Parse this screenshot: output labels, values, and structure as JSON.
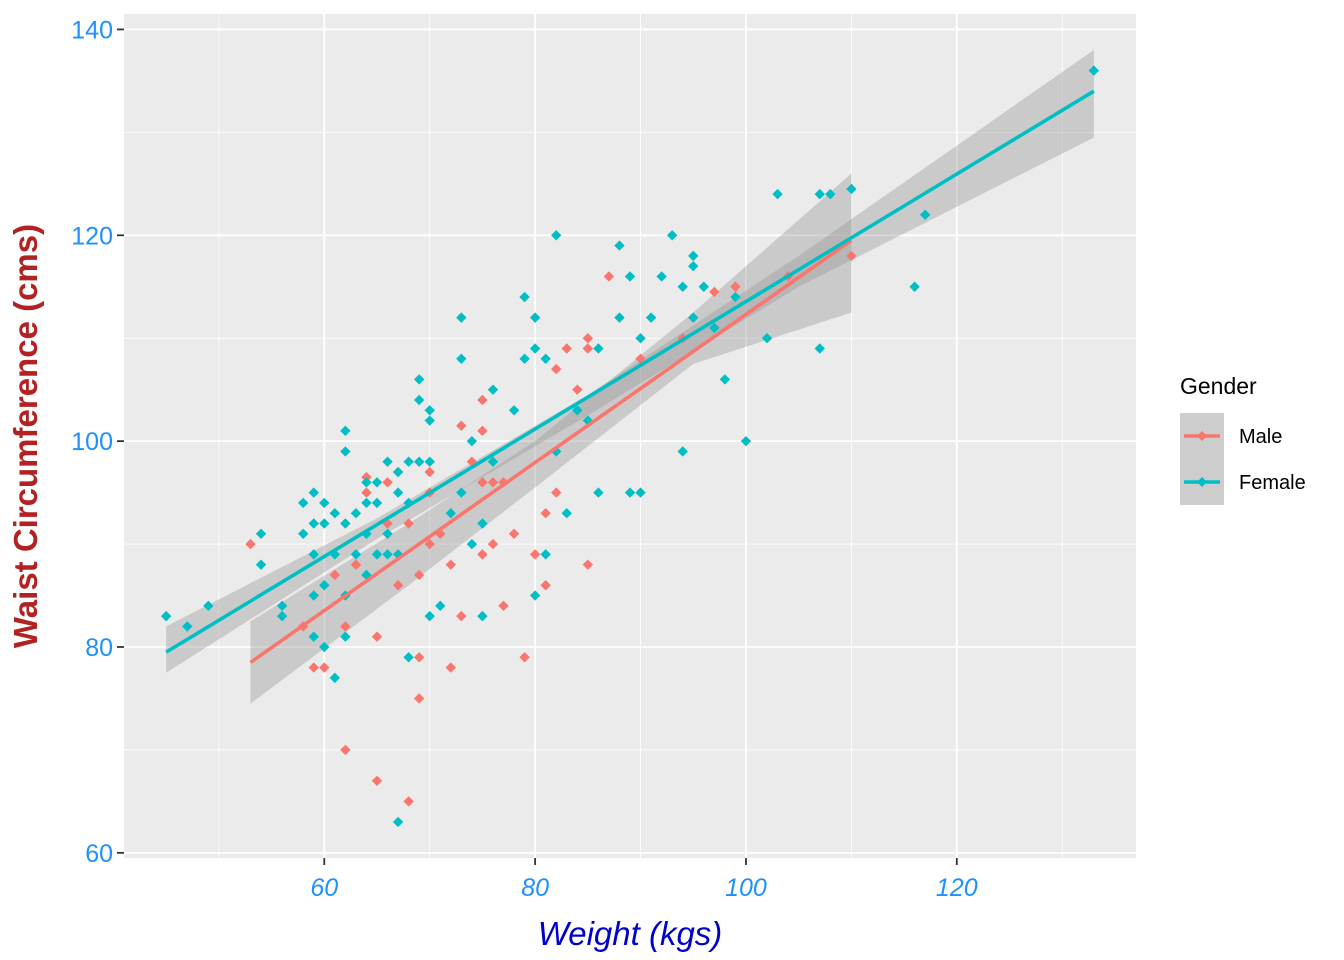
{
  "chart_data": {
    "type": "scatter",
    "title": "",
    "xlabel": "Weight (kgs)",
    "ylabel": "Waist Circumference (cms)",
    "xlim": [
      41,
      137
    ],
    "ylim": [
      59.5,
      141.5
    ],
    "x_ticks": [
      60,
      80,
      100,
      120
    ],
    "y_ticks": [
      60,
      80,
      100,
      120,
      140
    ],
    "grid": true,
    "legend": {
      "title": "Gender",
      "position": "right",
      "items": [
        "Male",
        "Female"
      ]
    },
    "colors": {
      "Male": "#F8766D",
      "Female": "#00BFC4",
      "x_tick_color": "#1E90FF",
      "y_tick_color": "#1E90FF",
      "xlabel_color": "#0000CD",
      "ylabel_color": "#B22222",
      "panel": "#EBEBEB",
      "ribbon": "#999999"
    },
    "series": [
      {
        "name": "Male",
        "points": [
          [
            53,
            90
          ],
          [
            58,
            82
          ],
          [
            59,
            78
          ],
          [
            60,
            78
          ],
          [
            61,
            87
          ],
          [
            62,
            82
          ],
          [
            62,
            70
          ],
          [
            63,
            88
          ],
          [
            64,
            95
          ],
          [
            64,
            96.5
          ],
          [
            65,
            81
          ],
          [
            65,
            67
          ],
          [
            66,
            92
          ],
          [
            66,
            96
          ],
          [
            67,
            97
          ],
          [
            67,
            86
          ],
          [
            68,
            65
          ],
          [
            68,
            92
          ],
          [
            69,
            79
          ],
          [
            69,
            75
          ],
          [
            69,
            87
          ],
          [
            70,
            95
          ],
          [
            70,
            90
          ],
          [
            70,
            97
          ],
          [
            71,
            91
          ],
          [
            72,
            88
          ],
          [
            72,
            78
          ],
          [
            73,
            101.5
          ],
          [
            73,
            83
          ],
          [
            74,
            98
          ],
          [
            75,
            104
          ],
          [
            75,
            101
          ],
          [
            75,
            96
          ],
          [
            75,
            89
          ],
          [
            76,
            90
          ],
          [
            76,
            96
          ],
          [
            77,
            84
          ],
          [
            77,
            96
          ],
          [
            78,
            91
          ],
          [
            79,
            79
          ],
          [
            80,
            89
          ],
          [
            81,
            93
          ],
          [
            81,
            86
          ],
          [
            82,
            95
          ],
          [
            82,
            107
          ],
          [
            83,
            109
          ],
          [
            84,
            105
          ],
          [
            85,
            109
          ],
          [
            85,
            110
          ],
          [
            85,
            88
          ],
          [
            87,
            116
          ],
          [
            90,
            108
          ],
          [
            94,
            110
          ],
          [
            97,
            114.5
          ],
          [
            99,
            115
          ],
          [
            104,
            116
          ],
          [
            110,
            118
          ]
        ],
        "fit": {
          "x0": 53,
          "y0": 78.5,
          "x1": 110,
          "y1": 119.5
        },
        "band": [
          [
            53,
            74.5,
            82.5
          ],
          [
            68,
            86,
            92
          ],
          [
            80,
            95.5,
            100
          ],
          [
            95,
            107.5,
            112.5
          ],
          [
            110,
            112.5,
            126
          ]
        ]
      },
      {
        "name": "Female",
        "points": [
          [
            45,
            83
          ],
          [
            47,
            82
          ],
          [
            49,
            84
          ],
          [
            54,
            88
          ],
          [
            54,
            91
          ],
          [
            56,
            84
          ],
          [
            56,
            83
          ],
          [
            58,
            91
          ],
          [
            58,
            94
          ],
          [
            59,
            95
          ],
          [
            59,
            92
          ],
          [
            59,
            89
          ],
          [
            59,
            85
          ],
          [
            59,
            81
          ],
          [
            60,
            94
          ],
          [
            60,
            92
          ],
          [
            60,
            86
          ],
          [
            60,
            80
          ],
          [
            61,
            93
          ],
          [
            61,
            89
          ],
          [
            61,
            77
          ],
          [
            62,
            101
          ],
          [
            62,
            99
          ],
          [
            62,
            92
          ],
          [
            62,
            85
          ],
          [
            62,
            81
          ],
          [
            63,
            93
          ],
          [
            63,
            89
          ],
          [
            64,
            96
          ],
          [
            64,
            94
          ],
          [
            64,
            91
          ],
          [
            64,
            87
          ],
          [
            65,
            96
          ],
          [
            65,
            94
          ],
          [
            65,
            89
          ],
          [
            66,
            98
          ],
          [
            66,
            91
          ],
          [
            66,
            89
          ],
          [
            67,
            97
          ],
          [
            67,
            95
          ],
          [
            67,
            89
          ],
          [
            67,
            63
          ],
          [
            68,
            98
          ],
          [
            68,
            94
          ],
          [
            68,
            79
          ],
          [
            69,
            106
          ],
          [
            69,
            104
          ],
          [
            69,
            98
          ],
          [
            70,
            103
          ],
          [
            70,
            102
          ],
          [
            70,
            98
          ],
          [
            70,
            83
          ],
          [
            71,
            84
          ],
          [
            72,
            93
          ],
          [
            73,
            112
          ],
          [
            73,
            108
          ],
          [
            73,
            95
          ],
          [
            74,
            100
          ],
          [
            74,
            90
          ],
          [
            75,
            92
          ],
          [
            75,
            83
          ],
          [
            76,
            98
          ],
          [
            76,
            105
          ],
          [
            78,
            103
          ],
          [
            79,
            114
          ],
          [
            79,
            108
          ],
          [
            80,
            112
          ],
          [
            80,
            109
          ],
          [
            80,
            85
          ],
          [
            81,
            108
          ],
          [
            81,
            89
          ],
          [
            82,
            120
          ],
          [
            82,
            99
          ],
          [
            83,
            93
          ],
          [
            84,
            103
          ],
          [
            85,
            102
          ],
          [
            86,
            109
          ],
          [
            86,
            95
          ],
          [
            88,
            119
          ],
          [
            88,
            112
          ],
          [
            89,
            116
          ],
          [
            89,
            95
          ],
          [
            90,
            110
          ],
          [
            90,
            95
          ],
          [
            91,
            112
          ],
          [
            92,
            116
          ],
          [
            93,
            120
          ],
          [
            94,
            115
          ],
          [
            94,
            99
          ],
          [
            95,
            118
          ],
          [
            95,
            117
          ],
          [
            95,
            112
          ],
          [
            96,
            115
          ],
          [
            97,
            111
          ],
          [
            98,
            106
          ],
          [
            99,
            114
          ],
          [
            100,
            100
          ],
          [
            102,
            110
          ],
          [
            103,
            124
          ],
          [
            107,
            124
          ],
          [
            107,
            109
          ],
          [
            108,
            124
          ],
          [
            110,
            124.5
          ],
          [
            116,
            115
          ],
          [
            117,
            122
          ],
          [
            133,
            136
          ]
        ],
        "fit": {
          "x0": 45,
          "y0": 79.5,
          "x1": 133,
          "y1": 134
        },
        "band": [
          [
            45,
            77.5,
            82
          ],
          [
            65,
            90.5,
            92.5
          ],
          [
            85,
            102.5,
            104.5
          ],
          [
            105,
            115,
            118
          ],
          [
            133,
            129.5,
            138
          ]
        ]
      }
    ]
  }
}
